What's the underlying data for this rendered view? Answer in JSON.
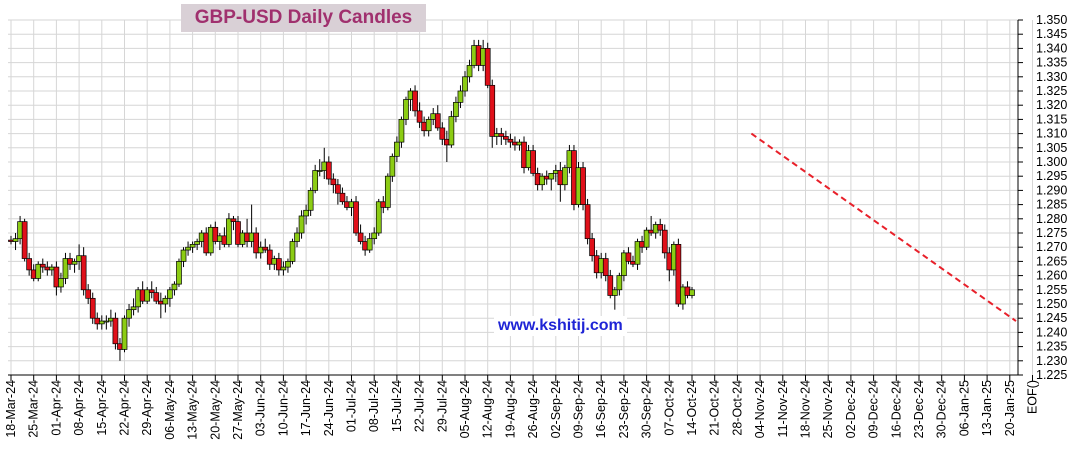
{
  "title": "GBP-USD Daily Candles",
  "watermark": "www.kshitij.com",
  "colors": {
    "up_candle": "#8ccc14",
    "down_candle": "#e0101a",
    "trendline": "#e8202a",
    "grid": "#d6d6d6",
    "title_text": "#a0306e",
    "title_bg": "#d9d0d6",
    "watermark_text": "#1f24d6"
  },
  "chart_data": {
    "type": "candlestick",
    "title": "GBP-USD Daily Candles",
    "ylim": [
      1.225,
      1.35
    ],
    "y_ticks": [
      "1.350",
      "1.345",
      "1.340",
      "1.335",
      "1.330",
      "1.325",
      "1.320",
      "1.315",
      "1.310",
      "1.305",
      "1.300",
      "1.295",
      "1.290",
      "1.285",
      "1.280",
      "1.275",
      "1.270",
      "1.265",
      "1.260",
      "1.255",
      "1.250",
      "1.245",
      "1.240",
      "1.235",
      "1.230",
      "1.225"
    ],
    "x_ticks": [
      "18-Mar-24",
      "25-Mar-24",
      "01-Apr-24",
      "08-Apr-24",
      "15-Apr-24",
      "22-Apr-24",
      "29-Apr-24",
      "06-May-24",
      "13-May-24",
      "20-May-24",
      "27-May-24",
      "03-Jun-24",
      "10-Jun-24",
      "17-Jun-24",
      "24-Jun-24",
      "01-Jul-24",
      "08-Jul-24",
      "15-Jul-24",
      "22-Jul-24",
      "29-Jul-24",
      "05-Aug-24",
      "12-Aug-24",
      "19-Aug-24",
      "26-Aug-24",
      "02-Sep-24",
      "09-Sep-24",
      "16-Sep-24",
      "23-Sep-24",
      "30-Sep-24",
      "07-Oct-24",
      "14-Oct-24",
      "21-Oct-24",
      "28-Oct-24",
      "04-Nov-24",
      "11-Nov-24",
      "18-Nov-24",
      "25-Nov-24",
      "02-Dec-24",
      "09-Dec-24",
      "16-Dec-24",
      "23-Dec-24",
      "30-Dec-24",
      "06-Jan-25",
      "13-Jan-25",
      "20-Jan-25",
      "EOF()"
    ],
    "grid": true,
    "candles_ohlc": [
      [
        1.2725,
        1.274,
        1.271,
        1.272
      ],
      [
        1.272,
        1.275,
        1.269,
        1.273
      ],
      [
        1.273,
        1.281,
        1.271,
        1.279
      ],
      [
        1.279,
        1.28,
        1.265,
        1.266
      ],
      [
        1.266,
        1.268,
        1.26,
        1.262
      ],
      [
        1.262,
        1.264,
        1.258,
        1.259
      ],
      [
        1.259,
        1.265,
        1.258,
        1.264
      ],
      [
        1.264,
        1.266,
        1.261,
        1.263
      ],
      [
        1.263,
        1.265,
        1.26,
        1.262
      ],
      [
        1.262,
        1.264,
        1.26,
        1.263
      ],
      [
        1.263,
        1.265,
        1.253,
        1.256
      ],
      [
        1.256,
        1.261,
        1.254,
        1.259
      ],
      [
        1.259,
        1.268,
        1.257,
        1.266
      ],
      [
        1.266,
        1.268,
        1.262,
        1.264
      ],
      [
        1.264,
        1.266,
        1.261,
        1.265
      ],
      [
        1.265,
        1.271,
        1.262,
        1.267
      ],
      [
        1.267,
        1.27,
        1.253,
        1.255
      ],
      [
        1.255,
        1.257,
        1.25,
        1.252
      ],
      [
        1.252,
        1.254,
        1.243,
        1.245
      ],
      [
        1.245,
        1.247,
        1.241,
        1.243
      ],
      [
        1.243,
        1.246,
        1.241,
        1.244
      ],
      [
        1.244,
        1.246,
        1.241,
        1.244
      ],
      [
        1.244,
        1.248,
        1.242,
        1.245
      ],
      [
        1.245,
        1.247,
        1.234,
        1.236
      ],
      [
        1.236,
        1.238,
        1.23,
        1.234
      ],
      [
        1.234,
        1.246,
        1.233,
        1.245
      ],
      [
        1.245,
        1.25,
        1.242,
        1.248
      ],
      [
        1.248,
        1.252,
        1.246,
        1.249
      ],
      [
        1.249,
        1.256,
        1.247,
        1.255
      ],
      [
        1.255,
        1.258,
        1.25,
        1.251
      ],
      [
        1.251,
        1.256,
        1.25,
        1.255
      ],
      [
        1.255,
        1.258,
        1.252,
        1.254
      ],
      [
        1.254,
        1.256,
        1.25,
        1.251
      ],
      [
        1.251,
        1.254,
        1.245,
        1.25
      ],
      [
        1.25,
        1.253,
        1.247,
        1.252
      ],
      [
        1.252,
        1.256,
        1.249,
        1.255
      ],
      [
        1.255,
        1.258,
        1.253,
        1.257
      ],
      [
        1.257,
        1.266,
        1.256,
        1.265
      ],
      [
        1.265,
        1.27,
        1.263,
        1.269
      ],
      [
        1.269,
        1.272,
        1.267,
        1.27
      ],
      [
        1.27,
        1.272,
        1.268,
        1.271
      ],
      [
        1.271,
        1.273,
        1.269,
        1.272
      ],
      [
        1.272,
        1.276,
        1.27,
        1.275
      ],
      [
        1.275,
        1.277,
        1.267,
        1.268
      ],
      [
        1.268,
        1.278,
        1.267,
        1.277
      ],
      [
        1.277,
        1.279,
        1.271,
        1.272
      ],
      [
        1.272,
        1.275,
        1.269,
        1.274
      ],
      [
        1.274,
        1.277,
        1.27,
        1.271
      ],
      [
        1.271,
        1.282,
        1.27,
        1.28
      ],
      [
        1.28,
        1.281,
        1.276,
        1.279
      ],
      [
        1.279,
        1.281,
        1.27,
        1.271
      ],
      [
        1.271,
        1.276,
        1.27,
        1.275
      ],
      [
        1.275,
        1.28,
        1.27,
        1.272
      ],
      [
        1.272,
        1.285,
        1.27,
        1.275
      ],
      [
        1.275,
        1.277,
        1.266,
        1.268
      ],
      [
        1.268,
        1.272,
        1.266,
        1.27
      ],
      [
        1.27,
        1.273,
        1.268,
        1.269
      ],
      [
        1.269,
        1.271,
        1.262,
        1.264
      ],
      [
        1.264,
        1.267,
        1.262,
        1.266
      ],
      [
        1.266,
        1.268,
        1.26,
        1.262
      ],
      [
        1.262,
        1.265,
        1.26,
        1.263
      ],
      [
        1.263,
        1.266,
        1.261,
        1.265
      ],
      [
        1.265,
        1.273,
        1.264,
        1.272
      ],
      [
        1.272,
        1.277,
        1.27,
        1.275
      ],
      [
        1.275,
        1.283,
        1.273,
        1.281
      ],
      [
        1.281,
        1.285,
        1.278,
        1.283
      ],
      [
        1.283,
        1.291,
        1.281,
        1.29
      ],
      [
        1.29,
        1.299,
        1.289,
        1.297
      ],
      [
        1.297,
        1.301,
        1.295,
        1.297
      ],
      [
        1.297,
        1.305,
        1.294,
        1.3
      ],
      [
        1.3,
        1.302,
        1.292,
        1.294
      ],
      [
        1.294,
        1.296,
        1.289,
        1.292
      ],
      [
        1.292,
        1.294,
        1.285,
        1.289
      ],
      [
        1.289,
        1.291,
        1.285,
        1.286
      ],
      [
        1.286,
        1.288,
        1.283,
        1.284
      ],
      [
        1.284,
        1.287,
        1.281,
        1.286
      ],
      [
        1.286,
        1.288,
        1.274,
        1.275
      ],
      [
        1.275,
        1.278,
        1.271,
        1.272
      ],
      [
        1.272,
        1.274,
        1.267,
        1.269
      ],
      [
        1.269,
        1.275,
        1.268,
        1.273
      ],
      [
        1.273,
        1.277,
        1.271,
        1.275
      ],
      [
        1.275,
        1.287,
        1.274,
        1.286
      ],
      [
        1.286,
        1.288,
        1.282,
        1.284
      ],
      [
        1.284,
        1.296,
        1.283,
        1.295
      ],
      [
        1.295,
        1.303,
        1.293,
        1.302
      ],
      [
        1.302,
        1.309,
        1.3,
        1.307
      ],
      [
        1.307,
        1.316,
        1.305,
        1.315
      ],
      [
        1.315,
        1.323,
        1.313,
        1.322
      ],
      [
        1.322,
        1.326,
        1.318,
        1.325
      ],
      [
        1.325,
        1.327,
        1.316,
        1.318
      ],
      [
        1.318,
        1.321,
        1.312,
        1.314
      ],
      [
        1.314,
        1.316,
        1.309,
        1.311
      ],
      [
        1.311,
        1.316,
        1.309,
        1.315
      ],
      [
        1.315,
        1.319,
        1.313,
        1.317
      ],
      [
        1.317,
        1.32,
        1.311,
        1.312
      ],
      [
        1.312,
        1.314,
        1.306,
        1.308
      ],
      [
        1.308,
        1.311,
        1.3,
        1.306
      ],
      [
        1.306,
        1.318,
        1.305,
        1.316
      ],
      [
        1.316,
        1.323,
        1.314,
        1.321
      ],
      [
        1.321,
        1.327,
        1.319,
        1.325
      ],
      [
        1.325,
        1.332,
        1.323,
        1.33
      ],
      [
        1.33,
        1.336,
        1.328,
        1.334
      ],
      [
        1.334,
        1.343,
        1.333,
        1.341
      ],
      [
        1.341,
        1.343,
        1.332,
        1.334
      ],
      [
        1.334,
        1.343,
        1.332,
        1.34
      ],
      [
        1.34,
        1.342,
        1.326,
        1.327
      ],
      [
        1.327,
        1.329,
        1.305,
        1.309
      ],
      [
        1.309,
        1.312,
        1.306,
        1.31
      ],
      [
        1.31,
        1.312,
        1.306,
        1.309
      ],
      [
        1.309,
        1.311,
        1.306,
        1.308
      ],
      [
        1.308,
        1.31,
        1.305,
        1.307
      ],
      [
        1.307,
        1.309,
        1.304,
        1.306
      ],
      [
        1.306,
        1.308,
        1.304,
        1.307
      ],
      [
        1.307,
        1.309,
        1.296,
        1.298
      ],
      [
        1.298,
        1.306,
        1.297,
        1.304
      ],
      [
        1.304,
        1.306,
        1.295,
        1.296
      ],
      [
        1.296,
        1.298,
        1.29,
        1.292
      ],
      [
        1.292,
        1.296,
        1.29,
        1.295
      ],
      [
        1.295,
        1.297,
        1.292,
        1.294
      ],
      [
        1.294,
        1.296,
        1.29,
        1.296
      ],
      [
        1.296,
        1.299,
        1.293,
        1.297
      ],
      [
        1.297,
        1.3,
        1.286,
        1.292
      ],
      [
        1.292,
        1.299,
        1.29,
        1.298
      ],
      [
        1.298,
        1.306,
        1.296,
        1.304
      ],
      [
        1.304,
        1.306,
        1.283,
        1.285
      ],
      [
        1.285,
        1.3,
        1.284,
        1.298
      ],
      [
        1.298,
        1.3,
        1.283,
        1.285
      ],
      [
        1.285,
        1.287,
        1.271,
        1.273
      ],
      [
        1.273,
        1.275,
        1.265,
        1.267
      ],
      [
        1.267,
        1.269,
        1.259,
        1.261
      ],
      [
        1.261,
        1.268,
        1.259,
        1.266
      ],
      [
        1.266,
        1.268,
        1.258,
        1.26
      ],
      [
        1.26,
        1.262,
        1.252,
        1.253
      ],
      [
        1.253,
        1.256,
        1.248,
        1.255
      ],
      [
        1.255,
        1.261,
        1.253,
        1.26
      ],
      [
        1.26,
        1.269,
        1.258,
        1.268
      ],
      [
        1.268,
        1.27,
        1.264,
        1.265
      ],
      [
        1.265,
        1.267,
        1.263,
        1.264
      ],
      [
        1.264,
        1.273,
        1.262,
        1.272
      ],
      [
        1.272,
        1.274,
        1.268,
        1.27
      ],
      [
        1.27,
        1.277,
        1.269,
        1.276
      ],
      [
        1.276,
        1.281,
        1.274,
        1.275
      ],
      [
        1.275,
        1.279,
        1.273,
        1.278
      ],
      [
        1.278,
        1.28,
        1.274,
        1.276
      ],
      [
        1.276,
        1.278,
        1.266,
        1.268
      ],
      [
        1.268,
        1.27,
        1.258,
        1.262
      ],
      [
        1.262,
        1.272,
        1.26,
        1.271
      ],
      [
        1.271,
        1.273,
        1.249,
        1.25
      ],
      [
        1.25,
        1.257,
        1.248,
        1.256
      ],
      [
        1.256,
        1.258,
        1.252,
        1.253
      ],
      [
        1.253,
        1.256,
        1.252,
        1.255
      ]
    ],
    "trendline": [
      [
        1.31,
        1.244
      ]
    ]
  }
}
